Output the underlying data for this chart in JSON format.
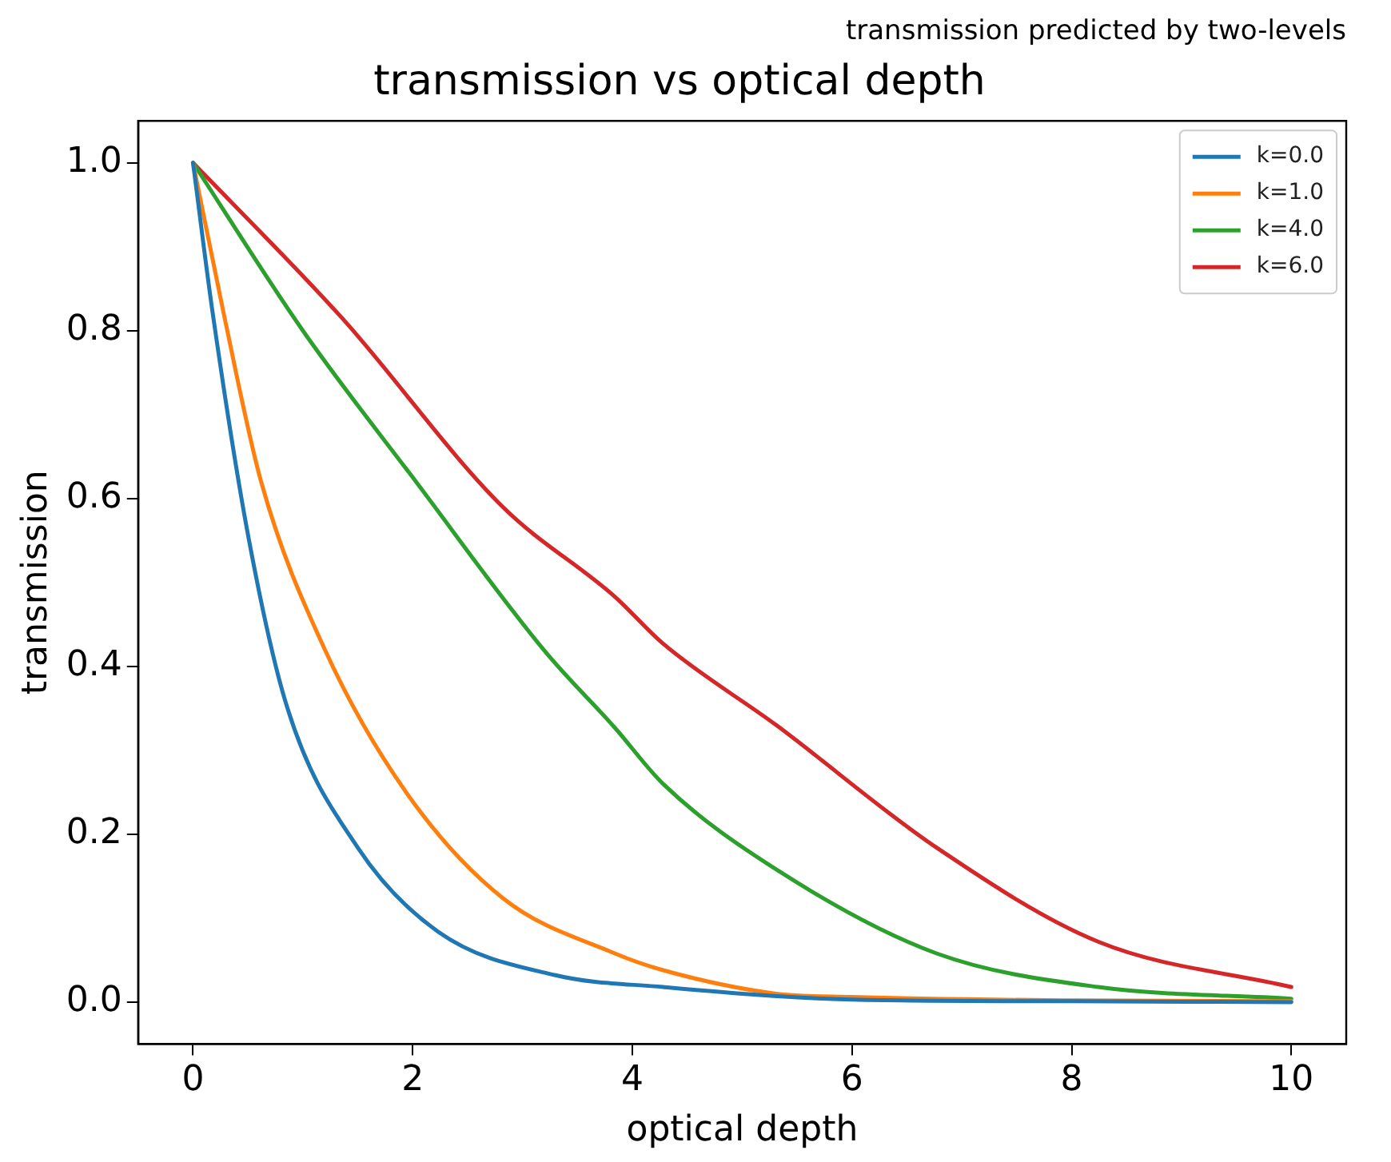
{
  "chart_data": {
    "type": "line",
    "title": "transmission vs optical depth",
    "subtitle": "transmission predicted by two-levels",
    "xlabel": "optical depth",
    "ylabel": "transmission",
    "xlim": [
      -0.5,
      10.5
    ],
    "xticks": [
      0,
      2,
      4,
      6,
      8,
      10
    ],
    "ylim": [
      -0.05,
      1.05
    ],
    "yticks": [
      {
        "value": 0,
        "label": "0.0"
      },
      0.2,
      0.4,
      0.6,
      0.8,
      {
        "value": 1,
        "label": "1.0"
      }
    ],
    "grid": false,
    "legend": "top right",
    "marker": "none",
    "line_style": "solid",
    "series": [
      {
        "name": "k=0.0",
        "color": "#1f77b4",
        "x": [
          0,
          0.18,
          0.51,
          0.86,
          1.5,
          2.23,
          3.3,
          4.28,
          6,
          8,
          10
        ],
        "values": [
          1,
          0.82,
          0.55,
          0.35,
          0.184,
          0.084,
          0.032,
          0.018,
          0.003,
          0.001,
          0
        ]
      },
      {
        "name": "k=1.0",
        "color": "#ff7f0e",
        "x": [
          0,
          0.28,
          0.62,
          1.2,
          1.94,
          2.82,
          3.84,
          4.28,
          5.31,
          6,
          8,
          10
        ],
        "values": [
          1,
          0.82,
          0.62,
          0.42,
          0.25,
          0.124,
          0.058,
          0.038,
          0.01,
          0.006,
          0.002,
          0.001
        ]
      },
      {
        "name": "k=4.0",
        "color": "#2ca02c",
        "x": [
          0,
          1,
          2.03,
          3.21,
          3.84,
          4.28,
          5.31,
          6.77,
          8.24,
          10
        ],
        "values": [
          1,
          0.8,
          0.62,
          0.417,
          0.327,
          0.26,
          0.158,
          0.058,
          0.018,
          0.004
        ]
      },
      {
        "name": "k=6.0",
        "color": "#d62728",
        "x": [
          0,
          1.35,
          2.82,
          3.84,
          4.28,
          5.31,
          6.77,
          8.24,
          10
        ],
        "values": [
          1,
          0.816,
          0.59,
          0.483,
          0.427,
          0.33,
          0.184,
          0.072,
          0.018
        ]
      }
    ]
  }
}
